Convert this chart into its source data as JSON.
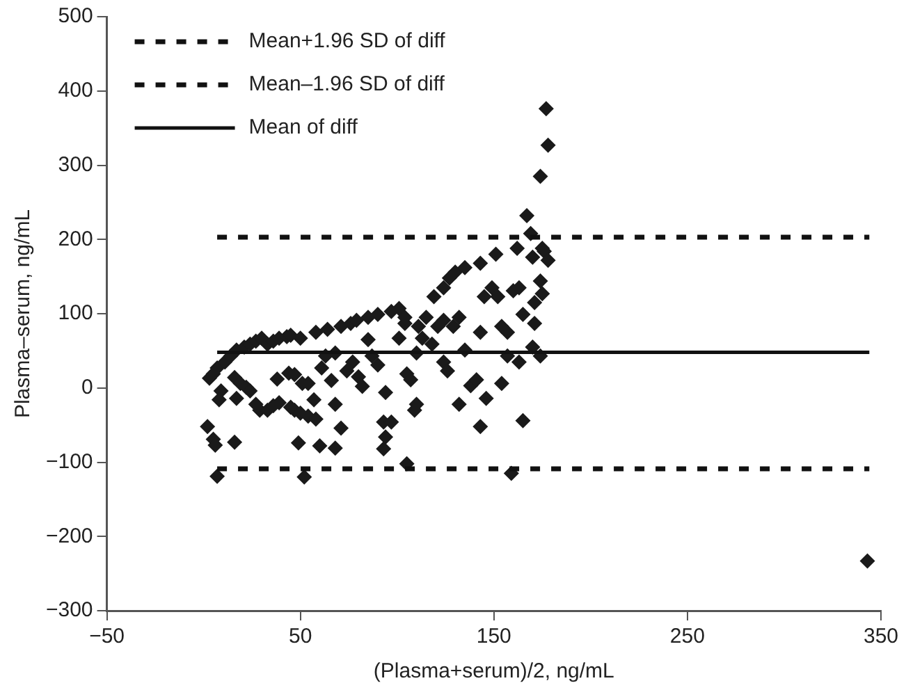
{
  "chart_data": {
    "type": "scatter",
    "xlabel": "(Plasma+serum)/2, ng/mL",
    "ylabel": "Plasma–serum, ng/mL",
    "xlim": [
      -50,
      350
    ],
    "xticks": [
      {
        "value": -50,
        "label": "−50"
      },
      50,
      150,
      250,
      350
    ],
    "ylim": [
      -300,
      500
    ],
    "yticks": [
      {
        "value": -300,
        "label": "−300"
      },
      {
        "value": -200,
        "label": "−200"
      },
      {
        "value": -100,
        "label": "−100"
      },
      0,
      100,
      200,
      300,
      400,
      500
    ],
    "grid": false,
    "legend": "top left",
    "marker": "diamond",
    "series": [
      {
        "type": "line",
        "name": "Mean+1.96 SD of diff",
        "color": "#111111",
        "line_style": "dotted",
        "marker": "none",
        "x": [
          7,
          344
        ],
        "values": [
          203,
          203
        ]
      },
      {
        "type": "line",
        "name": "Mean–1.96 SD of diff",
        "color": "#111111",
        "line_style": "dotted",
        "marker": "none",
        "x": [
          7,
          344
        ],
        "values": [
          -109,
          -109
        ]
      },
      {
        "type": "line",
        "name": "Mean of diff",
        "color": "#111111",
        "line_style": "solid",
        "marker": "none",
        "x": [
          7,
          344
        ],
        "values": [
          48,
          48
        ]
      },
      {
        "color": "#1a1a1a",
        "x": [
          3,
          5,
          7,
          9,
          8,
          2,
          5,
          6,
          7,
          16,
          11,
          14,
          17,
          21,
          24,
          27,
          30,
          33,
          36,
          39,
          43,
          45,
          50,
          16,
          19,
          22,
          24,
          17,
          27,
          29,
          33,
          36,
          39,
          45,
          47,
          50,
          54,
          58,
          57,
          38,
          44,
          47,
          51,
          49,
          52,
          54,
          60,
          68,
          71,
          68,
          66,
          61,
          63,
          68,
          58,
          64,
          71,
          76,
          79,
          85,
          90,
          74,
          77,
          80,
          82,
          85,
          87,
          90,
          93,
          94,
          93,
          97,
          94,
          97,
          101,
          104,
          101,
          105,
          107,
          110,
          109,
          105,
          104,
          111,
          115,
          113,
          110,
          118,
          121,
          124,
          119,
          124,
          127,
          130,
          135,
          124,
          126,
          129,
          132,
          135,
          132,
          138,
          141,
          143,
          146,
          143,
          145,
          149,
          151,
          143,
          152,
          154,
          154,
          157,
          157,
          159,
          160,
          163,
          165,
          162,
          163,
          165,
          167,
          169,
          170,
          171,
          171,
          170,
          174,
          175,
          175,
          176,
          178,
          174,
          174,
          177,
          178,
          343
        ],
        "values": [
          13,
          19,
          27,
          -4,
          -16,
          -52,
          -69,
          -77,
          -119,
          -73,
          35,
          43,
          51,
          55,
          59,
          63,
          67,
          59,
          63,
          67,
          69,
          71,
          67,
          14,
          6,
          1,
          -4,
          -14,
          -22,
          -30,
          -30,
          -24,
          -20,
          -26,
          -30,
          -34,
          -38,
          -42,
          -16,
          12,
          20,
          18,
          6,
          -74,
          -120,
          6,
          -78,
          -81,
          -54,
          -22,
          10,
          27,
          43,
          47,
          75,
          79,
          83,
          87,
          91,
          95,
          99,
          23,
          35,
          15,
          2,
          65,
          43,
          31,
          -46,
          -66,
          -82,
          -46,
          -6,
          103,
          107,
          87,
          67,
          19,
          11,
          -22,
          -30,
          -102,
          95,
          83,
          95,
          67,
          47,
          59,
          83,
          91,
          123,
          135,
          148,
          156,
          162,
          35,
          23,
          83,
          95,
          51,
          -22,
          3,
          11,
          -52,
          -14,
          75,
          123,
          135,
          180,
          168,
          123,
          83,
          6,
          75,
          43,
          -115,
          131,
          135,
          99,
          188,
          35,
          -44,
          232,
          208,
          176,
          115,
          87,
          55,
          144,
          127,
          188,
          184,
          172,
          43,
          285,
          376,
          327,
          -233
        ]
      }
    ]
  }
}
